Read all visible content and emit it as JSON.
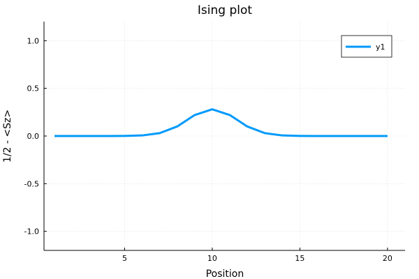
{
  "chart_data": {
    "type": "line",
    "title": "Ising plot",
    "xlabel": "Position",
    "ylabel": "1/2 - <Sz>",
    "xlim": [
      0.4,
      21.0
    ],
    "ylim": [
      -1.2,
      1.2
    ],
    "xticks": [
      5,
      10,
      15,
      20
    ],
    "xtick_labels": [
      "5",
      "10",
      "15",
      "20"
    ],
    "yticks": [
      -1.0,
      -0.5,
      0.0,
      0.5,
      1.0
    ],
    "ytick_labels": [
      "-1.0",
      "-0.5",
      "0.0",
      "0.5",
      "1.0"
    ],
    "grid": true,
    "legend_position": "top-right",
    "series": [
      {
        "name": "y1",
        "color": "#009AFA",
        "x": [
          1,
          2,
          3,
          4,
          5,
          6,
          7,
          8,
          9,
          10,
          11,
          12,
          13,
          14,
          15,
          16,
          17,
          18,
          19,
          20
        ],
        "values": [
          0.0,
          0.0,
          0.0,
          0.0,
          0.001,
          0.006,
          0.03,
          0.1,
          0.22,
          0.28,
          0.22,
          0.1,
          0.03,
          0.006,
          0.001,
          0.0,
          0.0,
          0.0,
          0.0,
          0.0
        ]
      }
    ]
  }
}
